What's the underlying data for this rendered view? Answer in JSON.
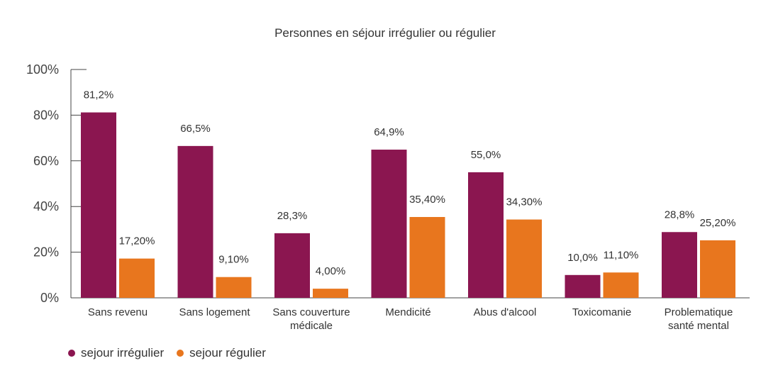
{
  "chart_data": {
    "type": "bar",
    "title": "Personnes en séjour irrégulier ou régulier",
    "categories": [
      [
        "Sans revenu"
      ],
      [
        "Sans logement"
      ],
      [
        "Sans couverture",
        "médicale"
      ],
      [
        "Mendicité"
      ],
      [
        "Abus d'alcool"
      ],
      [
        "Toxicomanie"
      ],
      [
        "Problematique",
        "santé mental"
      ]
    ],
    "series": [
      {
        "name": "sejour irrégulier",
        "color": "#8b1650",
        "values": [
          81.2,
          66.5,
          28.3,
          64.9,
          55.0,
          10.0,
          28.8
        ],
        "labels": [
          "81,2%",
          "66,5%",
          "28,3%",
          "64,9%",
          "55,0%",
          "10,0%",
          "28,8%"
        ]
      },
      {
        "name": "sejour régulier",
        "color": "#e8761e",
        "values": [
          17.2,
          9.1,
          4.0,
          35.4,
          34.3,
          11.1,
          25.2
        ],
        "labels": [
          "17,20%",
          "9,10%",
          "4,00%",
          "35,40%",
          "34,30%",
          "11,10%",
          "25,20%"
        ]
      }
    ],
    "ylim": [
      0,
      100
    ],
    "yticks": [
      {
        "value": 0,
        "label": "0%"
      },
      {
        "value": 20,
        "label": "20%"
      },
      {
        "value": 40,
        "label": "40%"
      },
      {
        "value": 60,
        "label": "60%"
      },
      {
        "value": 80,
        "label": "80%"
      },
      {
        "value": 100,
        "label": "100%"
      }
    ],
    "xlabel": "",
    "ylabel": "",
    "grid": false,
    "legend_position": "bottom-left"
  }
}
